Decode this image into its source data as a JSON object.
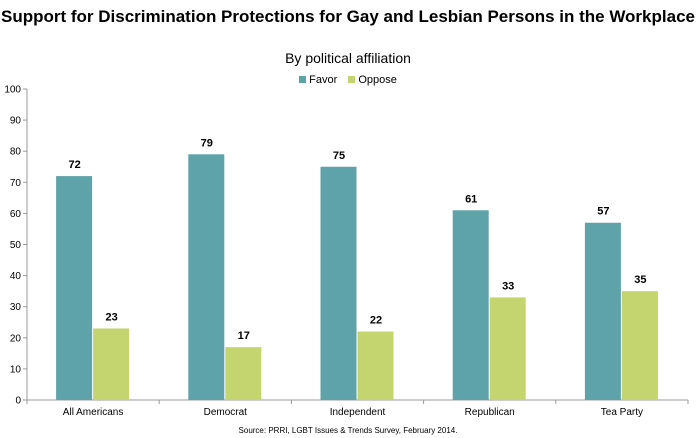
{
  "chart_data": {
    "type": "bar",
    "title": "Support for Discrimination Protections for Gay and Lesbian Persons in the Workplace",
    "subtitle": "By political affiliation",
    "categories": [
      "All Americans",
      "Democrat",
      "Independent",
      "Republican",
      "Tea Party"
    ],
    "series": [
      {
        "name": "Favor",
        "color": "#5fa3aa",
        "values": [
          72,
          79,
          75,
          61,
          57
        ]
      },
      {
        "name": "Oppose",
        "color": "#c4d46f",
        "values": [
          23,
          17,
          22,
          33,
          35
        ]
      }
    ],
    "ylim": [
      0,
      100
    ],
    "yticks": [
      0,
      10,
      20,
      30,
      40,
      50,
      60,
      70,
      80,
      90,
      100
    ],
    "xlabel": "",
    "ylabel": "",
    "grid": false,
    "legend": "top-center",
    "data_labels": true,
    "source": "Source: PRRI, LGBT Issues & Trends Survey, February 2014."
  }
}
